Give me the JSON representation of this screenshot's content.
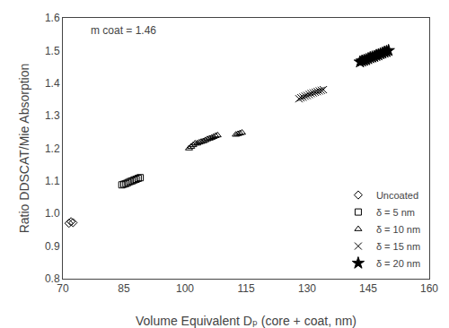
{
  "chart_data": {
    "type": "scatter",
    "annotation": "m coat = 1.46",
    "xlabel": "Volume Equivalent Dₚ (core + coat, nm)",
    "ylabel": "Ratio DDSCAT/Mie Absorption",
    "xlim": [
      70,
      160
    ],
    "ylim": [
      0.8,
      1.6
    ],
    "xticks": [
      70,
      85,
      100,
      115,
      130,
      145,
      160
    ],
    "yticks": [
      0.8,
      0.9,
      {
        "value": 1,
        "label": "1.0"
      },
      1.1,
      1.2,
      1.3,
      1.4,
      1.5,
      1.6
    ],
    "grid": false,
    "legend": "lower right",
    "series": [
      {
        "name": "Uncoated",
        "color": "black",
        "marker": "diamond-open",
        "x": [
          71.5,
          72.0,
          72.5
        ],
        "values": [
          0.97,
          0.975,
          0.972
        ]
      },
      {
        "name": "δ = 5 nm",
        "color": "black",
        "marker": "square-open",
        "x": [
          84.5,
          85.0,
          85.5,
          86.0,
          86.5,
          87.0,
          87.5,
          88.0,
          88.5,
          89.0
        ],
        "values": [
          1.088,
          1.09,
          1.092,
          1.095,
          1.098,
          1.1,
          1.103,
          1.105,
          1.108,
          1.11
        ]
      },
      {
        "name": "δ = 10 nm",
        "color": "black",
        "marker": "triangle-up-open",
        "x": [
          101.0,
          101.5,
          102.0,
          102.5,
          103.0,
          103.5,
          104.0,
          104.5,
          105.0,
          105.5,
          106.0,
          106.5,
          107.0,
          107.5,
          108.0,
          112.5,
          113.0,
          113.5,
          114.0
        ],
        "values": [
          1.2,
          1.205,
          1.21,
          1.215,
          1.215,
          1.218,
          1.22,
          1.222,
          1.225,
          1.228,
          1.23,
          1.232,
          1.235,
          1.238,
          1.24,
          1.242,
          1.244,
          1.246,
          1.248
        ]
      },
      {
        "name": "δ = 15 nm",
        "color": "black",
        "marker": "x-thin",
        "x": [
          128.0,
          128.5,
          129.0,
          129.5,
          130.0,
          130.5,
          131.0,
          131.5,
          132.0,
          132.5,
          133.0,
          133.5,
          134.0
        ],
        "values": [
          1.352,
          1.355,
          1.357,
          1.36,
          1.362,
          1.365,
          1.368,
          1.37,
          1.372,
          1.374,
          1.376,
          1.378,
          1.38
        ]
      },
      {
        "name": "δ = 20 nm",
        "color": "black",
        "marker": "star",
        "x": [
          143.0,
          143.5,
          144.0,
          144.5,
          145.0,
          145.5,
          146.0,
          146.5,
          147.0,
          147.5,
          148.0,
          148.5,
          149.0,
          149.5,
          150.0
        ],
        "values": [
          1.465,
          1.468,
          1.47,
          1.472,
          1.475,
          1.478,
          1.48,
          1.482,
          1.485,
          1.487,
          1.49,
          1.492,
          1.495,
          1.497,
          1.5
        ]
      }
    ]
  }
}
